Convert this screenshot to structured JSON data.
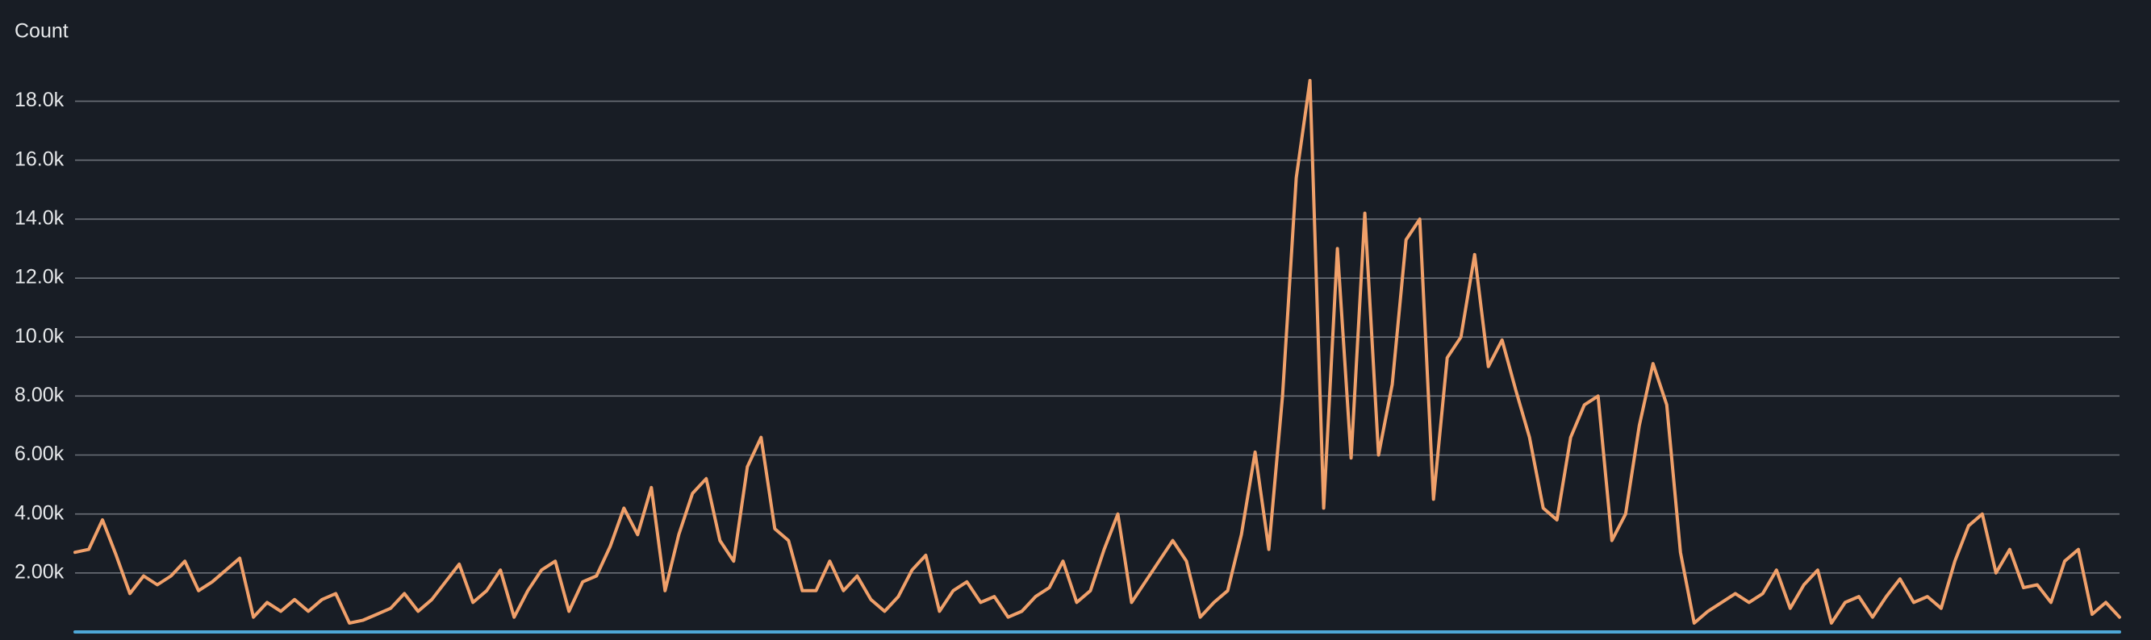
{
  "chart_data": {
    "type": "line",
    "y_label": "Count",
    "series": [
      {
        "color": "#f0a06a",
        "values": [
          2700,
          2800,
          3800,
          2600,
          1300,
          1900,
          1600,
          1900,
          2400,
          1400,
          1700,
          2100,
          2500,
          500,
          1000,
          700,
          1100,
          700,
          1100,
          1300,
          300,
          400,
          600,
          800,
          1300,
          700,
          1100,
          1700,
          2300,
          1000,
          1400,
          2100,
          500,
          1400,
          2100,
          2400,
          700,
          1700,
          1900,
          2900,
          4200,
          3300,
          4900,
          1400,
          3300,
          4700,
          5200,
          3100,
          2400,
          5600,
          6600,
          3500,
          3100,
          1400,
          1400,
          2400,
          1400,
          1900,
          1100,
          700,
          1200,
          2100,
          2600,
          700,
          1400,
          1700,
          1000,
          1200,
          500,
          700,
          1200,
          1500,
          2400,
          1000,
          1400,
          2800,
          4000,
          1000,
          1700,
          2400,
          3100,
          2400,
          500,
          1000,
          1400,
          3300,
          6100,
          2800,
          8000,
          15400,
          18700,
          4200,
          13000,
          5900,
          14200,
          6000,
          8400,
          13300,
          14000,
          4500,
          9300,
          10000,
          12800,
          9000,
          9900,
          8200,
          6600,
          4200,
          3800,
          6600,
          7700,
          8000,
          3100,
          4000,
          7000,
          9100,
          7700,
          2700,
          300,
          700,
          1000,
          1300,
          1000,
          1300,
          2100,
          800,
          1600,
          2100,
          300,
          1000,
          1200,
          500,
          1200,
          1800,
          1000,
          1200,
          800,
          2400,
          3600,
          4000,
          2000,
          2800,
          1500,
          1600,
          1000,
          2400,
          2800,
          600,
          1000,
          500
        ]
      },
      {
        "color": "#4ea8d8",
        "values": [
          0,
          0,
          0,
          0,
          0,
          0,
          0,
          0,
          0,
          0,
          0,
          0,
          0,
          0,
          0,
          0,
          0,
          0,
          0,
          0,
          0,
          0,
          0,
          0,
          0,
          0,
          0,
          0,
          0,
          0,
          0,
          0,
          0,
          0,
          0,
          0,
          0,
          0,
          0,
          0,
          0,
          0,
          0,
          0,
          0,
          0,
          0,
          0,
          0,
          0,
          0,
          0,
          0,
          0,
          0,
          0,
          0,
          0,
          0,
          0,
          0,
          0,
          0,
          0,
          0,
          0,
          0,
          0,
          0,
          0,
          0,
          0,
          0,
          0,
          0,
          0,
          0,
          0,
          0,
          0,
          0,
          0,
          0,
          0,
          0,
          0,
          0,
          0,
          0,
          0,
          0,
          0,
          0,
          0,
          0,
          0,
          0,
          0,
          0,
          0,
          0,
          0,
          0,
          0,
          0,
          0,
          0,
          0,
          0,
          0,
          0,
          0,
          0,
          0,
          0,
          0,
          0,
          0,
          0,
          0,
          0,
          0,
          0,
          0,
          0,
          0,
          0,
          0,
          0,
          0,
          0,
          0,
          0,
          0,
          0,
          0,
          0,
          0,
          0,
          0,
          0,
          0,
          0,
          0,
          0,
          0,
          0,
          0,
          0,
          0
        ]
      }
    ],
    "ylim": [
      0,
      19600
    ],
    "yticks": [
      {
        "value": 2000,
        "label": "2.00k"
      },
      {
        "value": 4000,
        "label": "4.00k"
      },
      {
        "value": 6000,
        "label": "6.00k"
      },
      {
        "value": 8000,
        "label": "8.00k"
      },
      {
        "value": 10000,
        "label": "10.0k"
      },
      {
        "value": 12000,
        "label": "12.0k"
      },
      {
        "value": 14000,
        "label": "14.0k"
      },
      {
        "value": 16000,
        "label": "16.0k"
      },
      {
        "value": 18000,
        "label": "18.0k"
      }
    ],
    "grid": true
  }
}
